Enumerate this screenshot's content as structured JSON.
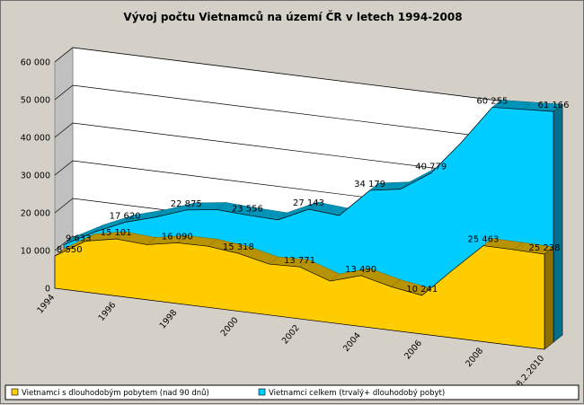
{
  "chart_data": {
    "type": "area",
    "title": "Vývoj počtu Vietnamců na území ČR v letech 1994-2008",
    "ylim": [
      0,
      60000
    ],
    "yticks": [
      0,
      10000,
      20000,
      30000,
      40000,
      50000,
      60000
    ],
    "ytick_labels": [
      "0",
      "10 000",
      "20 000",
      "30 000",
      "40 000",
      "50 000",
      "60 000"
    ],
    "xtick_labels": [
      "1994",
      "1996",
      "1998",
      "2000",
      "2002",
      "2004",
      "2006",
      "2008",
      "28.2.2010"
    ],
    "x": [
      1994,
      1995,
      1996,
      1997,
      1998,
      1999,
      2000,
      2001,
      2002,
      2003,
      2004,
      2005,
      2006,
      2007,
      2008,
      2009,
      2010
    ],
    "series": [
      {
        "name": "Vietnamci s dlouhodobým pobytem (nad 90 dnů)",
        "color": "#ffcc00",
        "values": [
          8550,
          13500,
          15101,
          14600,
          16090,
          16200,
          15318,
          13500,
          13771,
          11000,
          13490,
          11500,
          10241,
          18000,
          25463,
          25400,
          25238
        ],
        "labels": [
          "8 550",
          "",
          "15 101",
          "",
          "16 090",
          "",
          "15 318",
          "",
          "13 771",
          "",
          "13 490",
          "",
          "10 241",
          "",
          "25 463",
          "",
          "25 238"
        ]
      },
      {
        "name": "Vietnamci celkem (trvalý+ dlouhodobý pobyt)",
        "color": "#00ccff",
        "values": [
          9633,
          14000,
          17620,
          20000,
          22875,
          24000,
          23556,
          23300,
          27143,
          26500,
          34179,
          35500,
          40779,
          50000,
          60255,
          60700,
          61166
        ],
        "labels": [
          "9 633",
          "",
          "17 620",
          "",
          "22 875",
          "",
          "23 556",
          "",
          "27 143",
          "",
          "34 179",
          "",
          "40 779",
          "",
          "60 255",
          "",
          "61 166"
        ]
      }
    ],
    "legend": "bottom",
    "grid": true
  }
}
